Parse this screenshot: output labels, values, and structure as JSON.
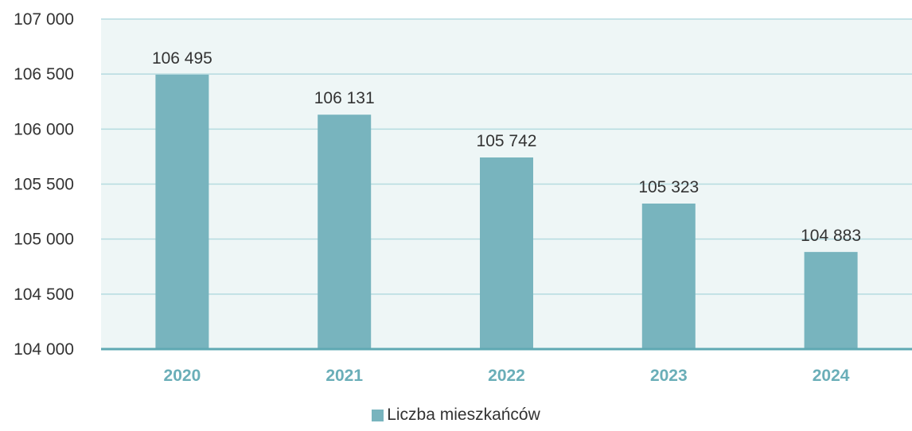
{
  "chart_data": {
    "type": "bar",
    "categories": [
      "2020",
      "2021",
      "2022",
      "2023",
      "2024"
    ],
    "series": [
      {
        "name": "Liczba mieszkańców",
        "values": [
          106495,
          106131,
          105742,
          105323,
          104883
        ],
        "data_labels": [
          "106 495",
          "106 131",
          "105 742",
          "105 323",
          "104 883"
        ]
      }
    ],
    "ylim": [
      104000,
      107000
    ],
    "yticks": [
      104000,
      104500,
      105000,
      105500,
      106000,
      106500,
      107000
    ],
    "ytick_labels": [
      "104 000",
      "104 500",
      "105 000",
      "105 500",
      "106 000",
      "106 500",
      "107 000"
    ],
    "grid": true,
    "legend_position": "bottom-center",
    "title": "",
    "xlabel": "",
    "ylabel": ""
  },
  "colors": {
    "bar": "#78b4be",
    "plot_background": "#eef6f6",
    "gridline": "#b5dbe0",
    "axis_line": "#5fa9b3",
    "category_label": "#6aaeb8",
    "tick_label": "#333333",
    "value_label": "#333333"
  },
  "legend": {
    "label": "Liczba mieszkańców"
  }
}
